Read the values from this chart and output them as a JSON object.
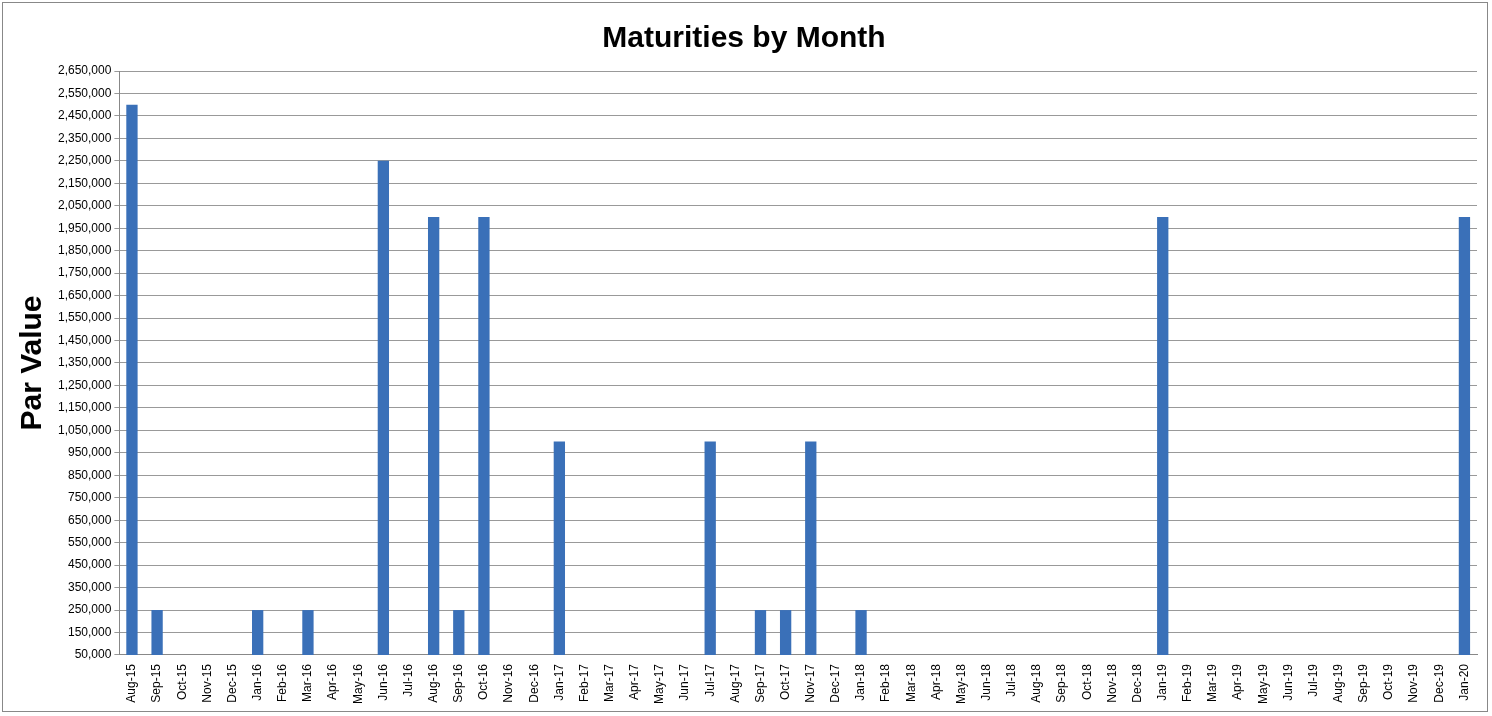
{
  "chart_data": {
    "type": "bar",
    "title": "Maturities by Month",
    "ylabel": "Par Value",
    "categories": [
      "Aug-15",
      "Sep-15",
      "Oct-15",
      "Nov-15",
      "Dec-15",
      "Jan-16",
      "Feb-16",
      "Mar-16",
      "Apr-16",
      "May-16",
      "Jun-16",
      "Jul-16",
      "Aug-16",
      "Sep-16",
      "Oct-16",
      "Nov-16",
      "Dec-16",
      "Jan-17",
      "Feb-17",
      "Mar-17",
      "Apr-17",
      "May-17",
      "Jun-17",
      "Jul-17",
      "Aug-17",
      "Sep-17",
      "Oct-17",
      "Nov-17",
      "Dec-17",
      "Jan-18",
      "Feb-18",
      "Mar-18",
      "Apr-18",
      "May-18",
      "Jun-18",
      "Jul-18",
      "Aug-18",
      "Sep-18",
      "Oct-18",
      "Nov-18",
      "Dec-18",
      "Jan-19",
      "Feb-19",
      "Mar-19",
      "Apr-19",
      "May-19",
      "Jun-19",
      "Jul-19",
      "Aug-19",
      "Sep-19",
      "Oct-19",
      "Nov-19",
      "Dec-19",
      "Jan-20"
    ],
    "stacked": true,
    "series": [
      {
        "color": "#3a70b8",
        "values": [
          2000000,
          250000,
          null,
          null,
          null,
          250000,
          null,
          250000,
          null,
          null,
          2250000,
          null,
          2000000,
          250000,
          2000000,
          null,
          null,
          1000000,
          null,
          null,
          null,
          null,
          null,
          250000,
          null,
          250000,
          250000,
          1000000,
          null,
          250000,
          null,
          null,
          null,
          null,
          null,
          null,
          null,
          null,
          null,
          null,
          null,
          2000000,
          null,
          null,
          null,
          null,
          null,
          null,
          null,
          null,
          null,
          null,
          null,
          2000000
        ]
      },
      {
        "color": "#3a70b8",
        "values": [
          500000,
          null,
          null,
          null,
          null,
          null,
          null,
          null,
          null,
          null,
          null,
          null,
          null,
          null,
          null,
          null,
          null,
          null,
          null,
          null,
          null,
          null,
          null,
          750000,
          null,
          null,
          null,
          null,
          null,
          null,
          null,
          null,
          null,
          null,
          null,
          null,
          null,
          null,
          null,
          null,
          null,
          null,
          null,
          null,
          null,
          null,
          null,
          null,
          null,
          null,
          null,
          null,
          null,
          null
        ]
      }
    ],
    "ylim": [
      50000,
      2650000
    ],
    "yticks": [
      {
        "value": 50000,
        "label": "50,000"
      },
      {
        "value": 150000,
        "label": "150,000"
      },
      {
        "value": 250000,
        "label": "250,000"
      },
      {
        "value": 350000,
        "label": "350,000"
      },
      {
        "value": 450000,
        "label": "450,000"
      },
      {
        "value": 550000,
        "label": "550,000"
      },
      {
        "value": 650000,
        "label": "650,000"
      },
      {
        "value": 750000,
        "label": "750,000"
      },
      {
        "value": 850000,
        "label": "850,000"
      },
      {
        "value": 950000,
        "label": "950,000"
      },
      {
        "value": 1050000,
        "label": "1,050,000"
      },
      {
        "value": 1150000,
        "label": "1,150,000"
      },
      {
        "value": 1250000,
        "label": "1,250,000"
      },
      {
        "value": 1350000,
        "label": "1,350,000"
      },
      {
        "value": 1450000,
        "label": "1,450,000"
      },
      {
        "value": 1550000,
        "label": "1,550,000"
      },
      {
        "value": 1650000,
        "label": "1,650,000"
      },
      {
        "value": 1750000,
        "label": "1,750,000"
      },
      {
        "value": 1850000,
        "label": "1,850,000"
      },
      {
        "value": 1950000,
        "label": "1,950,000"
      },
      {
        "value": 2050000,
        "label": "2,050,000"
      },
      {
        "value": 2150000,
        "label": "2,150,000"
      },
      {
        "value": 2250000,
        "label": "2,250,000"
      },
      {
        "value": 2350000,
        "label": "2,350,000"
      },
      {
        "value": 2450000,
        "label": "2,450,000"
      },
      {
        "value": 2550000,
        "label": "2,550,000"
      },
      {
        "value": 2650000,
        "label": "2,650,000"
      }
    ],
    "grid": "y",
    "legend": false
  }
}
